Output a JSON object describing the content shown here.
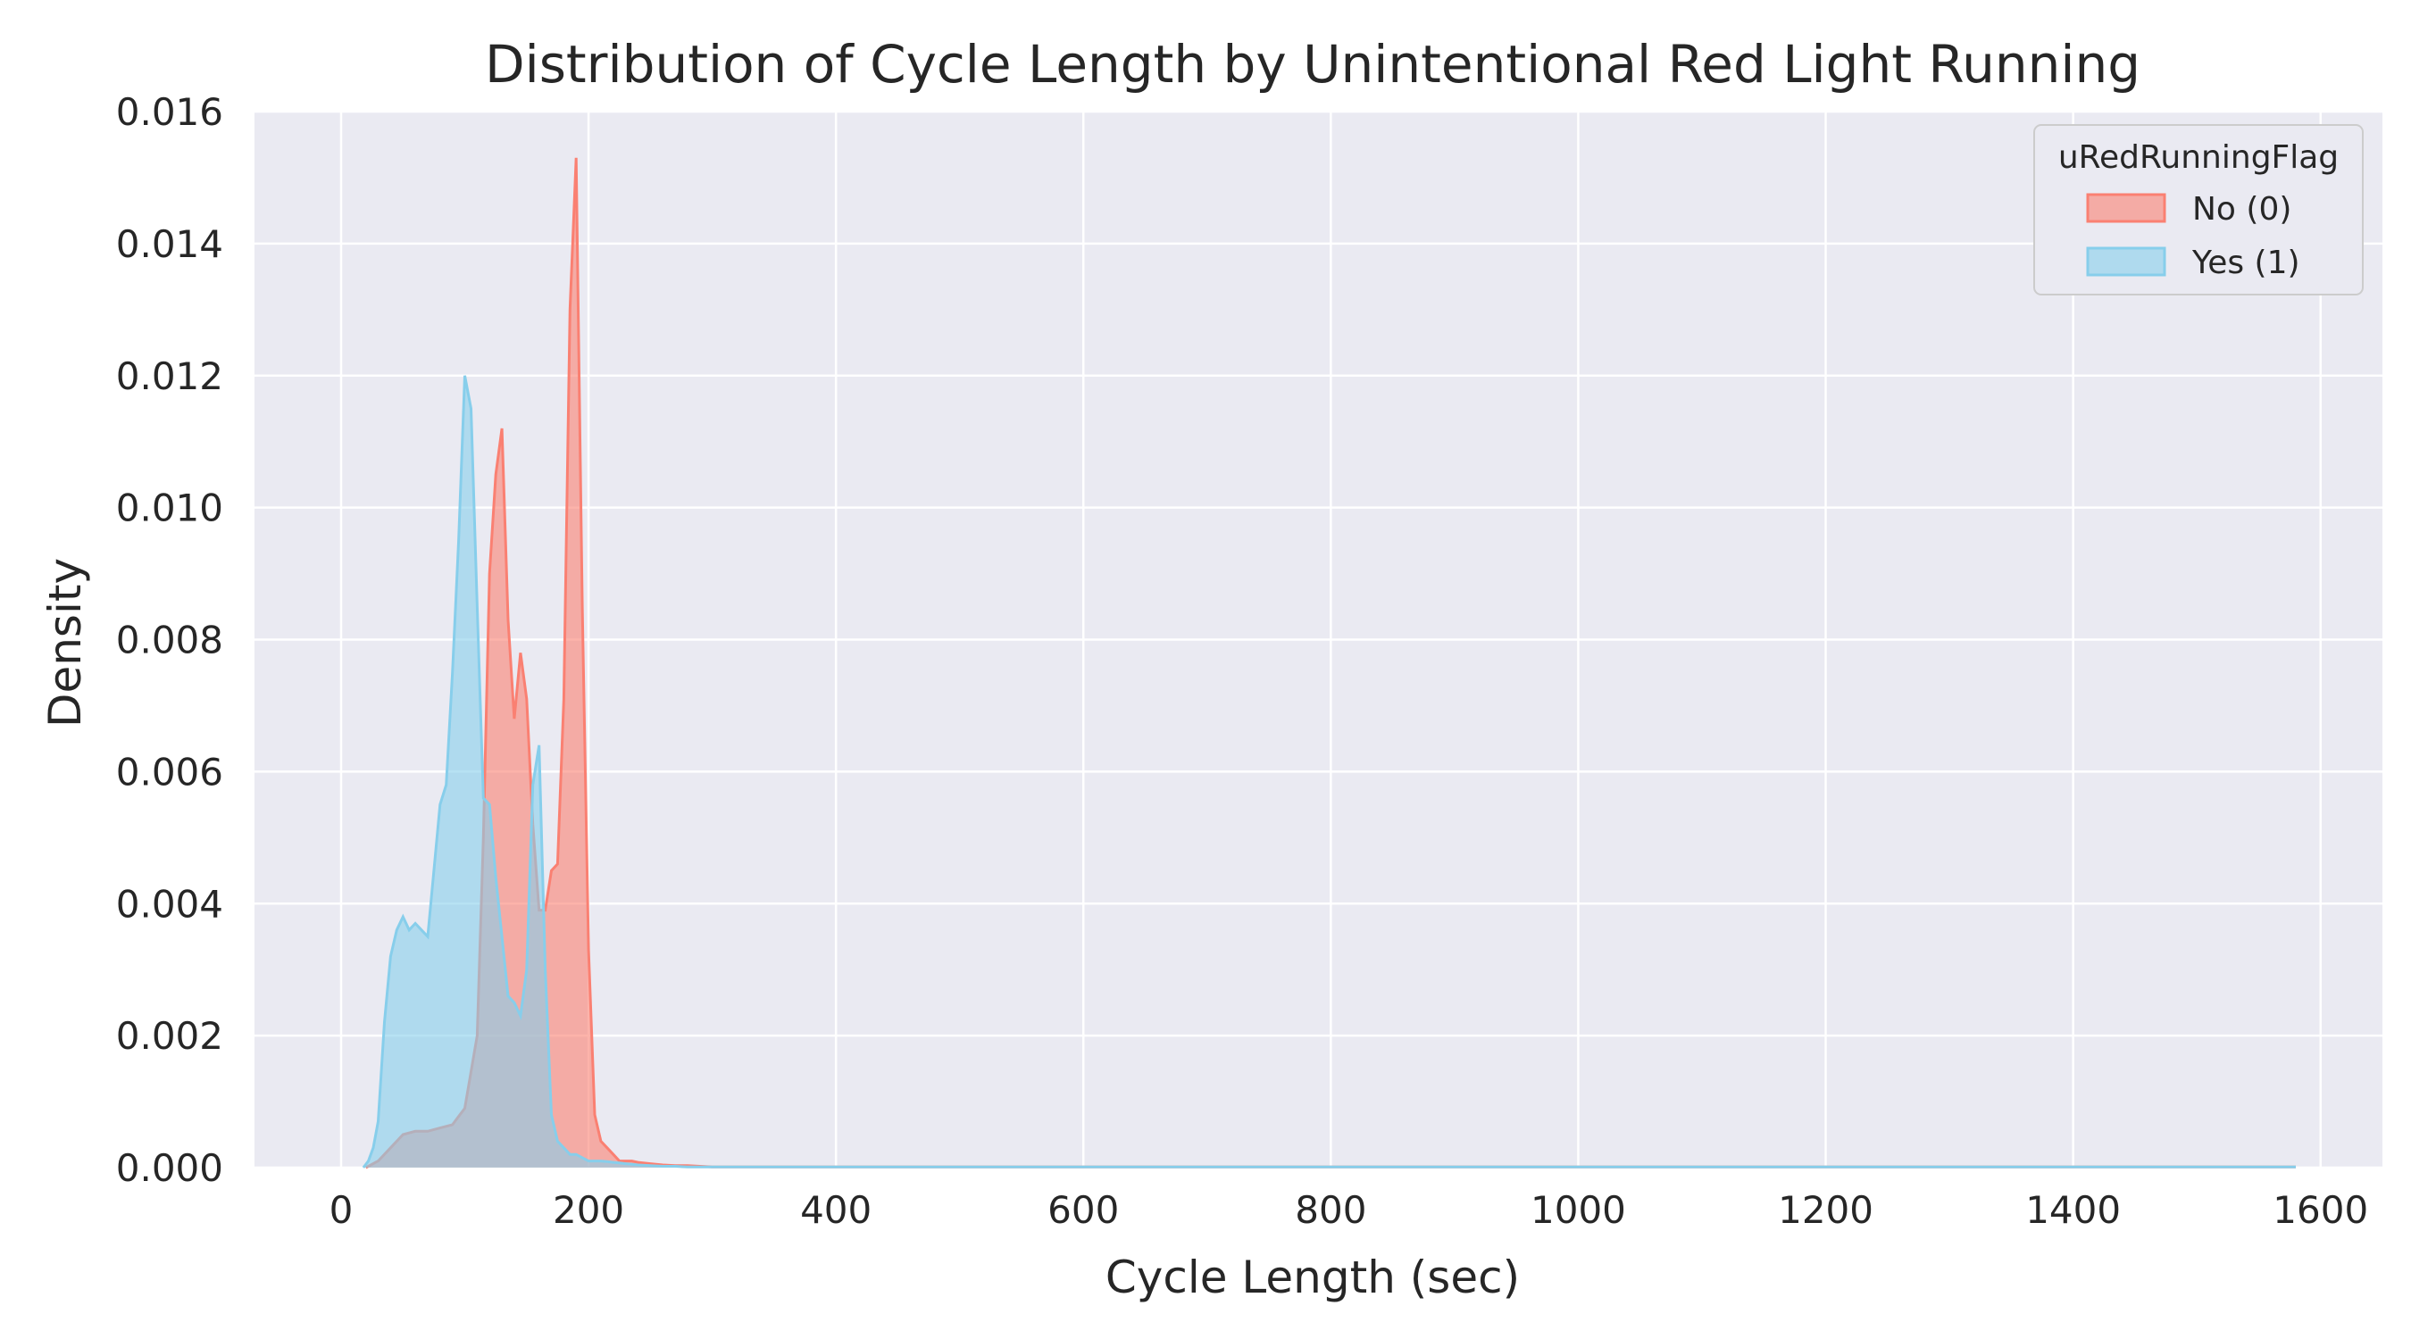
{
  "chart_data": {
    "type": "area",
    "title": "Distribution of Cycle Length by Unintentional Red Light Running",
    "xlabel": "Cycle Length (sec)",
    "ylabel": "Density",
    "xlim": [
      -70,
      1650
    ],
    "ylim": [
      0,
      0.016
    ],
    "xticks": [
      0,
      200,
      400,
      600,
      800,
      1000,
      1200,
      1400,
      1600
    ],
    "xtick_labels": [
      "0",
      "200",
      "400",
      "600",
      "800",
      "1000",
      "1200",
      "1400",
      "1600"
    ],
    "yticks": [
      0,
      0.002,
      0.004,
      0.006,
      0.008,
      0.01,
      0.012,
      0.014,
      0.016
    ],
    "ytick_labels": [
      "0.000",
      "0.002",
      "0.004",
      "0.006",
      "0.008",
      "0.010",
      "0.012",
      "0.014",
      "0.016"
    ],
    "grid": true,
    "legend": {
      "title": "uRedRunningFlag",
      "position": "top-right"
    },
    "series": [
      {
        "name": "No (0)",
        "color": "#fa8072",
        "x": [
          20,
          30,
          40,
          50,
          60,
          70,
          80,
          90,
          100,
          110,
          115,
          120,
          125,
          130,
          135,
          140,
          145,
          150,
          155,
          160,
          165,
          170,
          175,
          180,
          185,
          190,
          195,
          200,
          205,
          210,
          215,
          220,
          225,
          230,
          235,
          240,
          250,
          260,
          270,
          280,
          290,
          300,
          350,
          400,
          450,
          500,
          600,
          700,
          800,
          1000,
          1200,
          1400,
          1580
        ],
        "y": [
          0,
          0.0001,
          0.0003,
          0.0005,
          0.00055,
          0.00055,
          0.0006,
          0.00065,
          0.0009,
          0.002,
          0.005,
          0.009,
          0.0105,
          0.0112,
          0.0083,
          0.0068,
          0.0078,
          0.0071,
          0.0052,
          0.0039,
          0.0039,
          0.0045,
          0.0046,
          0.0071,
          0.013,
          0.0153,
          0.0085,
          0.0033,
          0.0008,
          0.0004,
          0.0003,
          0.0002,
          0.0001,
          0.0001,
          0.0001,
          8e-05,
          6e-05,
          4e-05,
          3e-05,
          3e-05,
          2e-05,
          1e-05,
          1e-05,
          1e-05,
          1e-05,
          1e-05,
          1e-05,
          1e-05,
          1e-05,
          1e-05,
          1e-05,
          1e-05,
          1e-05
        ]
      },
      {
        "name": "Yes (1)",
        "color": "#87ceeb",
        "x": [
          18,
          22,
          26,
          30,
          35,
          40,
          45,
          50,
          55,
          60,
          65,
          70,
          75,
          80,
          85,
          90,
          95,
          100,
          105,
          110,
          115,
          120,
          125,
          130,
          135,
          140,
          145,
          150,
          155,
          160,
          165,
          170,
          175,
          180,
          185,
          190,
          195,
          200,
          205,
          210,
          215,
          220,
          225,
          230,
          235,
          240,
          250,
          260,
          270,
          280,
          290,
          300,
          350,
          400,
          450,
          500,
          600,
          700,
          800,
          1000,
          1200,
          1400,
          1580
        ],
        "y": [
          0,
          0.0001,
          0.0003,
          0.0007,
          0.0022,
          0.0032,
          0.0036,
          0.0038,
          0.0036,
          0.0037,
          0.0036,
          0.0035,
          0.0045,
          0.0055,
          0.0058,
          0.0075,
          0.0095,
          0.012,
          0.0115,
          0.0085,
          0.0056,
          0.0055,
          0.0044,
          0.0035,
          0.0026,
          0.0025,
          0.0023,
          0.003,
          0.0058,
          0.0064,
          0.003,
          0.0008,
          0.0004,
          0.0003,
          0.0002,
          0.0002,
          0.00015,
          0.0001,
          0.0001,
          0.0001,
          9e-05,
          8e-05,
          7e-05,
          6e-05,
          5e-05,
          4e-05,
          3e-05,
          2e-05,
          2e-05,
          1e-05,
          1e-05,
          1e-05,
          1e-05,
          1e-05,
          1e-05,
          1e-05,
          1e-05,
          1e-05,
          1e-05,
          1e-05,
          1e-05,
          1e-05,
          1e-05
        ]
      }
    ]
  }
}
